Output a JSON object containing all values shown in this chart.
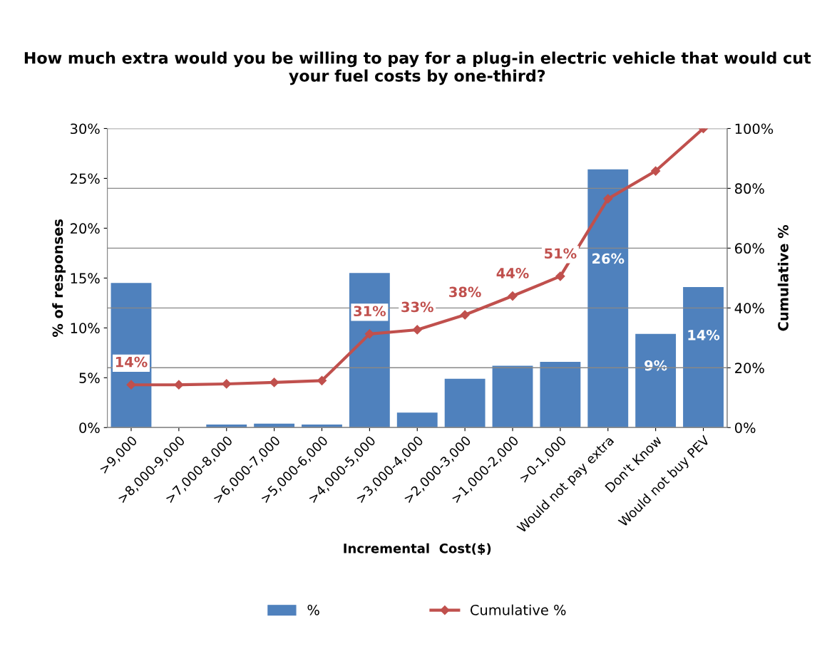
{
  "chart_data": {
    "type": "bar",
    "title": "How much extra would you be willing to pay for a plug-in electric vehicle that would cut your fuel costs by one-third?",
    "xlabel": "Incremental  Cost($)",
    "ylabel": "% of responses",
    "y2label": "Cumulative %",
    "categories": [
      ">9,000",
      ">8,000-9,000",
      ">7,000-8,000",
      ">6,000-7,000",
      ">5,000-6,000",
      ">4,000-5,000",
      ">3,000-4,000",
      ">2,000-3,000",
      ">1,000-2,000",
      ">0-1,000",
      "Would not pay extra",
      "Don't Know",
      "Would not buy PEV"
    ],
    "series": [
      {
        "name": "%",
        "color": "#4f81bd",
        "values": [
          14.5,
          0,
          0.3,
          0.4,
          0.3,
          15.5,
          1.5,
          4.9,
          6.2,
          6.6,
          25.9,
          9.4,
          14.1
        ],
        "value_labels": [
          null,
          null,
          null,
          null,
          null,
          null,
          null,
          null,
          null,
          null,
          "26%",
          "9%",
          "14%"
        ]
      },
      {
        "name": "Cumulative %",
        "type": "line",
        "axis": "y2",
        "color": "#c0504d",
        "marker": "diamond",
        "values": [
          14.3,
          14.3,
          14.6,
          15.1,
          15.7,
          31.3,
          32.7,
          37.7,
          44,
          50.6,
          76.5,
          85.8,
          100
        ],
        "value_labels": [
          "14%",
          null,
          null,
          null,
          null,
          "31%",
          "33%",
          "38%",
          "44%",
          "51%",
          null,
          null,
          null
        ]
      }
    ],
    "ylim": [
      0,
      30
    ],
    "yticks": [
      {
        "value": 0,
        "label": "0%"
      },
      {
        "value": 5,
        "label": "5%"
      },
      {
        "value": 10,
        "label": "10%"
      },
      {
        "value": 15,
        "label": "15%"
      },
      {
        "value": 20,
        "label": "20%"
      },
      {
        "value": 25,
        "label": "25%"
      },
      {
        "value": 30,
        "label": "30%"
      }
    ],
    "y2lim": [
      0,
      100
    ],
    "y2ticks": [
      {
        "value": 0,
        "label": "0%"
      },
      {
        "value": 20,
        "label": "20%"
      },
      {
        "value": 40,
        "label": "40%"
      },
      {
        "value": 60,
        "label": "60%"
      },
      {
        "value": 80,
        "label": "80%"
      },
      {
        "value": 100,
        "label": "100%"
      }
    ],
    "grid": "y",
    "legend": "bottom"
  }
}
